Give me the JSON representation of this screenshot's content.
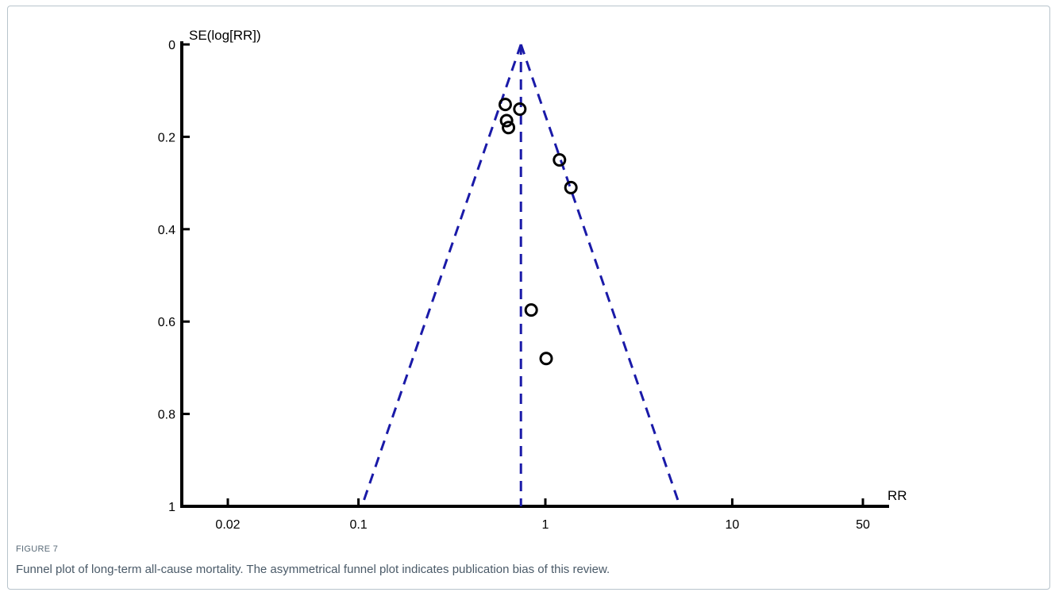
{
  "figure": {
    "label": "FIGURE 7",
    "caption": "Funnel plot of long-term all-cause mortality. The asymmetrical funnel plot indicates publication bias of this review."
  },
  "chart_data": {
    "type": "scatter",
    "title": "",
    "xlabel": "RR",
    "ylabel": "SE(log[RR])",
    "x_scale": "log",
    "y_inverted": true,
    "xlim": [
      0.015,
      70
    ],
    "ylim": [
      0,
      1
    ],
    "x_ticks": [
      0.02,
      0.1,
      1,
      10,
      50
    ],
    "x_tick_labels": [
      "0.02",
      "0.1",
      "1",
      "10",
      "50"
    ],
    "y_ticks": [
      0,
      0.2,
      0.4,
      0.6,
      0.8,
      1
    ],
    "y_tick_labels": [
      "0",
      "0.2",
      "0.4",
      "0.6",
      "0.8",
      "1"
    ],
    "pooled_estimate_rr": 0.74,
    "funnel_bottom_se": 1,
    "points": [
      {
        "rr": 0.61,
        "se": 0.13
      },
      {
        "rr": 0.73,
        "se": 0.14
      },
      {
        "rr": 0.62,
        "se": 0.165
      },
      {
        "rr": 0.635,
        "se": 0.18
      },
      {
        "rr": 1.19,
        "se": 0.25
      },
      {
        "rr": 1.37,
        "se": 0.31
      },
      {
        "rr": 0.84,
        "se": 0.575
      },
      {
        "rr": 1.01,
        "se": 0.68
      }
    ],
    "colors": {
      "funnel": "#1a1aa8",
      "points": "#000000",
      "axes": "#000000"
    }
  }
}
